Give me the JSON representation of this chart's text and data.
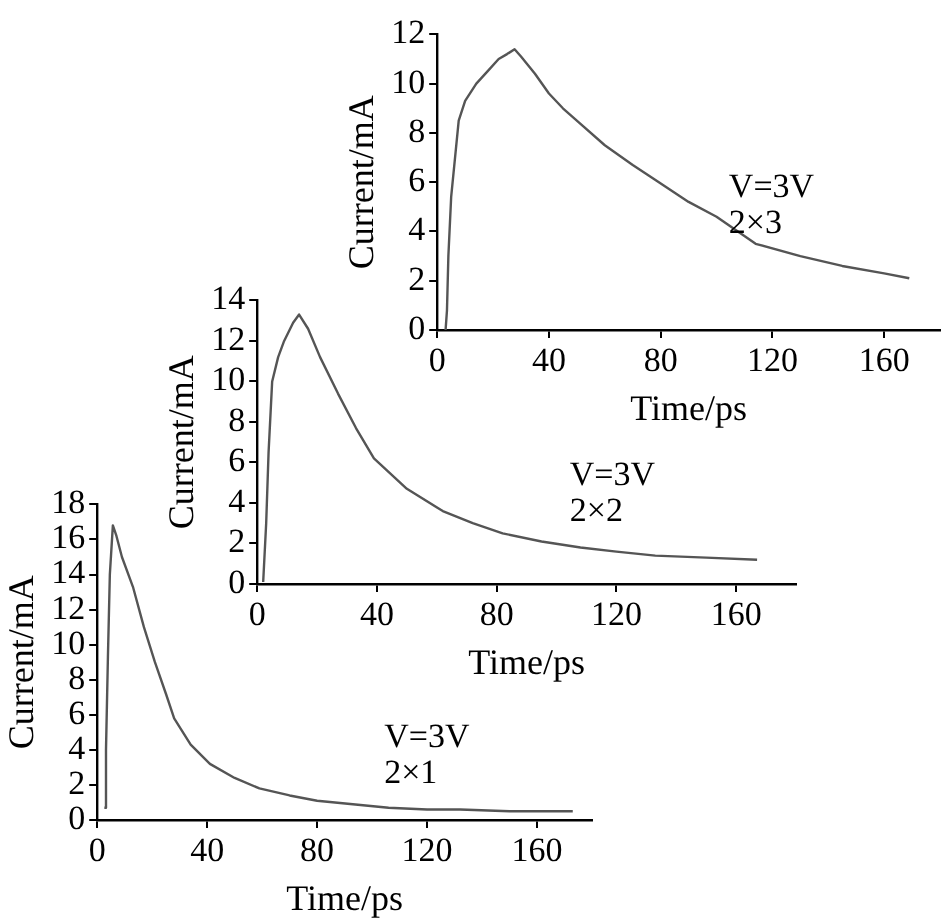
{
  "chart_data": [
    {
      "type": "line",
      "xlabel": "Time/ps",
      "ylabel": "Current/mA",
      "annotations": [
        "V=3V",
        "2×3"
      ],
      "xlim": [
        0,
        180
      ],
      "xticks": [
        0,
        40,
        80,
        120,
        160
      ],
      "ylim": [
        0,
        12
      ],
      "yticks": [
        0,
        2,
        4,
        6,
        8,
        10,
        12
      ],
      "grid": false,
      "legend": false,
      "marker": "none",
      "line_style": "solid",
      "series": [
        {
          "color": "#555555",
          "x": [
            3,
            3.5,
            4,
            5,
            7.7,
            10,
            14,
            18,
            22,
            25,
            27.7,
            30,
            35,
            40,
            45,
            51,
            60,
            70,
            78,
            90,
            100,
            114,
            130,
            145,
            160,
            169
          ],
          "values": [
            0,
            0.8,
            3,
            5.4,
            8.5,
            9.3,
            10,
            10.5,
            11,
            11.2,
            11.4,
            11.1,
            10.4,
            9.6,
            9,
            8.4,
            7.5,
            6.7,
            6.1,
            5.2,
            4.6,
            3.5,
            3,
            2.6,
            2.3,
            2.1
          ]
        }
      ]
    },
    {
      "type": "line",
      "xlabel": "Time/ps",
      "ylabel": "Current/mA",
      "annotations": [
        "V=3V",
        "2×2"
      ],
      "xlim": [
        0,
        180
      ],
      "xticks": [
        0,
        40,
        80,
        120,
        160
      ],
      "ylim": [
        0,
        14
      ],
      "yticks": [
        0,
        2,
        4,
        6,
        8,
        10,
        12,
        14
      ],
      "grid": false,
      "legend": false,
      "marker": "none",
      "line_style": "solid",
      "series": [
        {
          "color": "#555555",
          "x": [
            2,
            3,
            3.8,
            5,
            7,
            9,
            12,
            14,
            17,
            21,
            27,
            33,
            39,
            50,
            62,
            72,
            82,
            95,
            108,
            120,
            133,
            150,
            167
          ],
          "values": [
            0.1,
            3,
            6.5,
            10,
            11.2,
            12,
            12.9,
            13.3,
            12.6,
            11.2,
            9.4,
            7.7,
            6.2,
            4.7,
            3.6,
            3,
            2.5,
            2.1,
            1.8,
            1.6,
            1.4,
            1.3,
            1.2
          ]
        }
      ]
    },
    {
      "type": "line",
      "xlabel": "Time/ps",
      "ylabel": "Current/mA",
      "annotations": [
        "V=3V",
        "2×1"
      ],
      "xlim": [
        0,
        180
      ],
      "xticks": [
        0,
        40,
        80,
        120,
        160
      ],
      "ylim": [
        0,
        18
      ],
      "yticks": [
        0,
        2,
        4,
        6,
        8,
        10,
        12,
        14,
        16,
        18
      ],
      "grid": false,
      "legend": false,
      "marker": "none",
      "line_style": "solid",
      "series": [
        {
          "color": "#555555",
          "x": [
            2.6,
            3.2,
            3.9,
            4.6,
            5.7,
            7,
            9,
            13,
            17,
            21,
            25,
            28,
            34,
            41,
            50,
            59,
            70,
            80,
            93,
            106,
            120,
            132,
            150,
            173
          ],
          "values": [
            0.7,
            4,
            9.3,
            14,
            16.8,
            16.2,
            15,
            13.3,
            11,
            9,
            7.2,
            5.8,
            4.3,
            3.2,
            2.4,
            1.8,
            1.4,
            1.1,
            0.9,
            0.7,
            0.6,
            0.6,
            0.5,
            0.5
          ]
        }
      ]
    }
  ]
}
